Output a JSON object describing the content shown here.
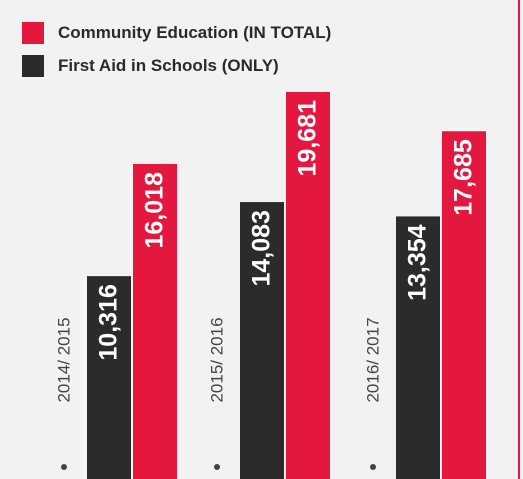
{
  "chart_data": {
    "type": "bar",
    "categories": [
      "2014/ 2015",
      "2015/ 2016",
      "2016/ 2017"
    ],
    "series": [
      {
        "name": "First Aid in Schools (ONLY)",
        "color": "#2b2b2b",
        "values": [
          10316,
          14083,
          13354
        ],
        "value_labels": [
          "10,316",
          "14,083",
          "13,354"
        ]
      },
      {
        "name": "Community Education (IN TOTAL)",
        "color": "#e4173e",
        "values": [
          16018,
          19681,
          17685
        ],
        "value_labels": [
          "16,018",
          "19,681",
          "17,685"
        ]
      }
    ],
    "legend": "top-left"
  }
}
